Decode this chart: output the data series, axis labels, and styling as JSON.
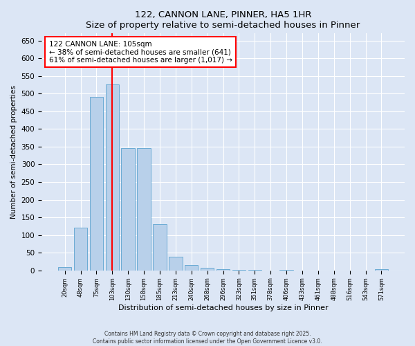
{
  "title": "122, CANNON LANE, PINNER, HA5 1HR",
  "subtitle": "Size of property relative to semi-detached houses in Pinner",
  "xlabel": "Distribution of semi-detached houses by size in Pinner",
  "ylabel": "Number of semi-detached properties",
  "categories": [
    "20sqm",
    "48sqm",
    "75sqm",
    "103sqm",
    "130sqm",
    "158sqm",
    "185sqm",
    "213sqm",
    "240sqm",
    "268sqm",
    "296sqm",
    "323sqm",
    "351sqm",
    "378sqm",
    "406sqm",
    "433sqm",
    "461sqm",
    "488sqm",
    "516sqm",
    "543sqm",
    "571sqm"
  ],
  "values": [
    10,
    120,
    490,
    525,
    345,
    345,
    130,
    38,
    15,
    7,
    4,
    2,
    1,
    0,
    1,
    0,
    0,
    0,
    0,
    0,
    3
  ],
  "bar_color": "#b8d0ea",
  "bar_edge_color": "#6aaad4",
  "property_size_label": "122 CANNON LANE: 105sqm",
  "pct_smaller": 38,
  "count_smaller": 641,
  "pct_larger": 61,
  "count_larger": 1017,
  "vline_x_index": 3,
  "vline_color": "red",
  "ylim": [
    0,
    670
  ],
  "yticks": [
    0,
    50,
    100,
    150,
    200,
    250,
    300,
    350,
    400,
    450,
    500,
    550,
    600,
    650
  ],
  "footer_line1": "Contains HM Land Registry data © Crown copyright and database right 2025.",
  "footer_line2": "Contains public sector information licensed under the Open Government Licence v3.0.",
  "background_color": "#dce6f5",
  "plot_background_color": "#dce6f5"
}
